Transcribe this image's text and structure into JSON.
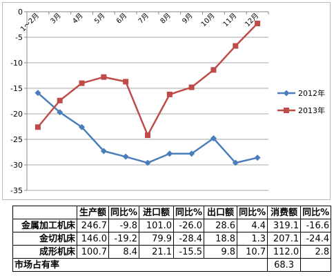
{
  "chart_data": {
    "type": "line",
    "categories": [
      "1～2月",
      "3月",
      "4月",
      "5月",
      "6月",
      "7月",
      "8月",
      "9月",
      "10月",
      "11月",
      "12月"
    ],
    "series": [
      {
        "name": "2012年",
        "color": "#4a7ebb",
        "marker": "diamond",
        "values": [
          -15.9,
          -19.7,
          -22.6,
          -27.3,
          -28.4,
          -29.6,
          -27.8,
          -27.8,
          -24.8,
          -29.6,
          -28.6
        ]
      },
      {
        "name": "2013年",
        "color": "#be4b48",
        "marker": "square",
        "values": [
          -22.6,
          -17.4,
          -14.0,
          -12.8,
          -13.7,
          -24.2,
          -16.2,
          -14.8,
          -11.4,
          -6.7,
          -2.3
        ]
      }
    ],
    "ylim": [
      -35,
      0
    ],
    "yticks": [
      0,
      -5,
      -10,
      -15,
      -20,
      -25,
      -30,
      -35
    ],
    "legend_position": "right",
    "grid": "horizontal"
  },
  "table": {
    "headers": [
      "",
      "生产额",
      "同比%",
      "进口额",
      "同比%",
      "出口额",
      "同比%",
      "消费额",
      "同比%"
    ],
    "rows": [
      {
        "label": "金属加工机床",
        "values": [
          "246.7",
          "-9.8",
          "101.0",
          "-26.0",
          "28.6",
          "4.4",
          "319.1",
          "-16.6"
        ]
      },
      {
        "label": "金切机床",
        "values": [
          "146.0",
          "-19.2",
          "79.9",
          "-28.4",
          "18.8",
          "1.3",
          "207.1",
          "-24.4"
        ]
      },
      {
        "label": "成形机床",
        "values": [
          "100.7",
          "8.4",
          "21.1",
          "-15.5",
          "9.8",
          "10.7",
          "112.0",
          "2.8"
        ]
      }
    ],
    "share": {
      "label": "市场占有率",
      "value": "68.3"
    }
  }
}
